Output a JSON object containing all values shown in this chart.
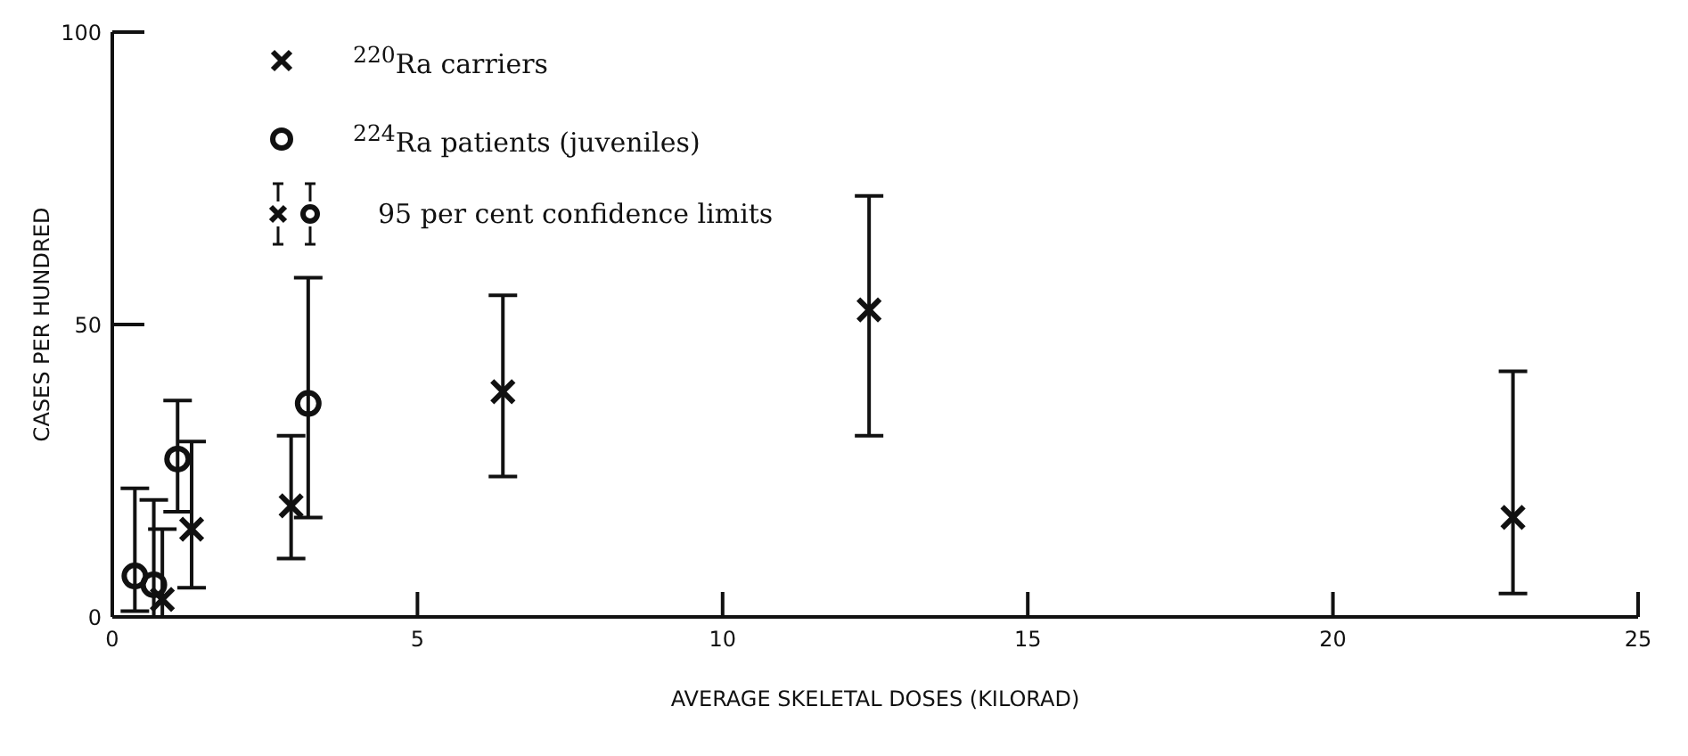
{
  "chart_data": {
    "type": "scatter",
    "xlabel": "AVERAGE SKELETAL DOSES (KILORAD)",
    "ylabel": "CASES PER HUNDRED",
    "xlim": [
      0,
      25
    ],
    "xticks": [
      0,
      5,
      10,
      15,
      20,
      25
    ],
    "ylim": [
      0,
      100
    ],
    "yticks": [
      0,
      50,
      100
    ],
    "grid": false,
    "legend": "top left",
    "annotations": [
      "95 per cent confidence limits"
    ],
    "series": [
      {
        "name": "$^{220}$Ra carriers",
        "color": "#111111",
        "marker": "cross",
        "x": [
          0.82,
          1.3,
          2.93,
          6.4,
          12.4,
          22.95
        ],
        "values": [
          3,
          15,
          19,
          38.5,
          52.5,
          17
        ],
        "errors": [
          [
            0,
            15
          ],
          [
            5,
            30
          ],
          [
            10,
            31
          ],
          [
            24,
            55
          ],
          [
            31,
            72
          ],
          [
            4,
            42
          ]
        ]
      },
      {
        "name": "$^{224}$Ra patients (juveniles)",
        "color": "#111111",
        "marker": "circle",
        "x": [
          0.37,
          0.68,
          1.07,
          3.21
        ],
        "values": [
          7,
          5.5,
          27,
          36.5
        ],
        "errors": [
          [
            1,
            22
          ],
          [
            0,
            20
          ],
          [
            18,
            37
          ],
          [
            17,
            58
          ]
        ]
      }
    ]
  }
}
